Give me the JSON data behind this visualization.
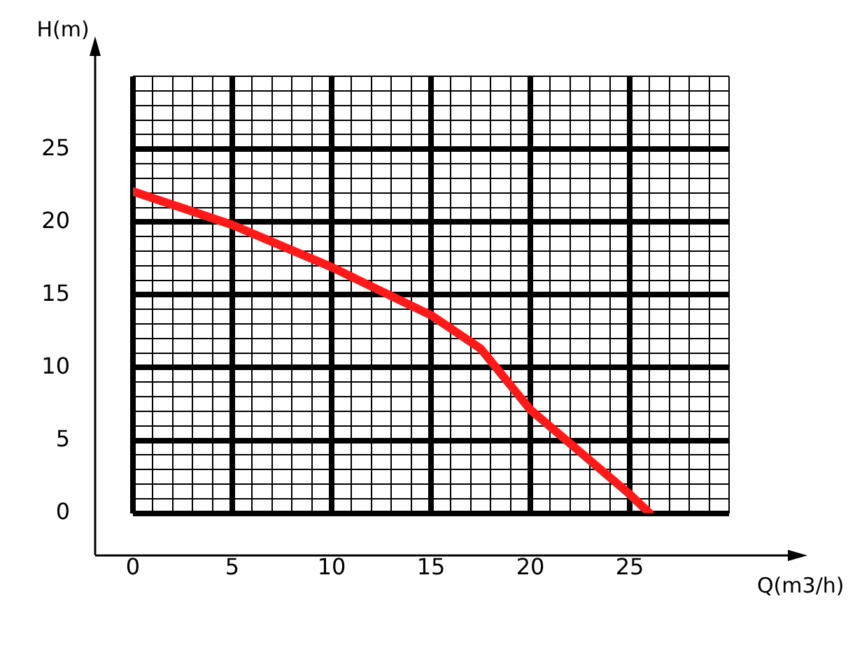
{
  "chart_data": {
    "type": "line",
    "xlabel": "Q(m3/h)",
    "ylabel": "H(m)",
    "x": [
      0,
      5,
      10,
      15,
      17.5,
      20,
      25,
      26
    ],
    "series": [
      {
        "color": "#ff1a1a",
        "values": [
          22.1,
          19.8,
          16.9,
          13.6,
          11.3,
          7.1,
          1.3,
          0
        ]
      }
    ],
    "xlim": [
      0,
      30
    ],
    "ylim": [
      0,
      30
    ],
    "xticks": [
      0,
      {
        "value": 1,
        "label": null
      },
      {
        "value": 2,
        "label": null
      },
      {
        "value": 3,
        "label": null
      },
      {
        "value": 4,
        "label": null
      },
      5,
      {
        "value": 6,
        "label": null
      },
      {
        "value": 7,
        "label": null
      },
      {
        "value": 8,
        "label": null
      },
      {
        "value": 9,
        "label": null
      },
      10,
      {
        "value": 11,
        "label": null
      },
      {
        "value": 12,
        "label": null
      },
      {
        "value": 13,
        "label": null
      },
      {
        "value": 14,
        "label": null
      },
      15,
      {
        "value": 16,
        "label": null
      },
      {
        "value": 17,
        "label": null
      },
      {
        "value": 18,
        "label": null
      },
      {
        "value": 19,
        "label": null
      },
      20,
      {
        "value": 21,
        "label": null
      },
      {
        "value": 22,
        "label": null
      },
      {
        "value": 23,
        "label": null
      },
      {
        "value": 24,
        "label": null
      },
      25,
      {
        "value": 26,
        "label": null
      },
      {
        "value": 27,
        "label": null
      },
      {
        "value": 28,
        "label": null
      },
      {
        "value": 29,
        "label": null
      },
      {
        "value": 30,
        "label": null
      }
    ],
    "yticks": [
      0,
      {
        "value": 1,
        "label": null
      },
      {
        "value": 2,
        "label": null
      },
      {
        "value": 3,
        "label": null
      },
      {
        "value": 4,
        "label": null
      },
      5,
      {
        "value": 6,
        "label": null
      },
      {
        "value": 7,
        "label": null
      },
      {
        "value": 8,
        "label": null
      },
      {
        "value": 9,
        "label": null
      },
      10,
      {
        "value": 11,
        "label": null
      },
      {
        "value": 12,
        "label": null
      },
      {
        "value": 13,
        "label": null
      },
      {
        "value": 14,
        "label": null
      },
      15,
      {
        "value": 16,
        "label": null
      },
      {
        "value": 17,
        "label": null
      },
      {
        "value": 18,
        "label": null
      },
      {
        "value": 19,
        "label": null
      },
      20,
      {
        "value": 21,
        "label": null
      },
      {
        "value": 22,
        "label": null
      },
      {
        "value": 23,
        "label": null
      },
      {
        "value": 24,
        "label": null
      },
      25,
      {
        "value": 26,
        "label": null
      },
      {
        "value": 27,
        "label": null
      },
      {
        "value": 28,
        "label": null
      },
      {
        "value": 29,
        "label": null
      },
      {
        "value": 30,
        "label": null
      }
    ],
    "grid": true,
    "legend": false,
    "marker": "none",
    "line_style": "solid"
  }
}
